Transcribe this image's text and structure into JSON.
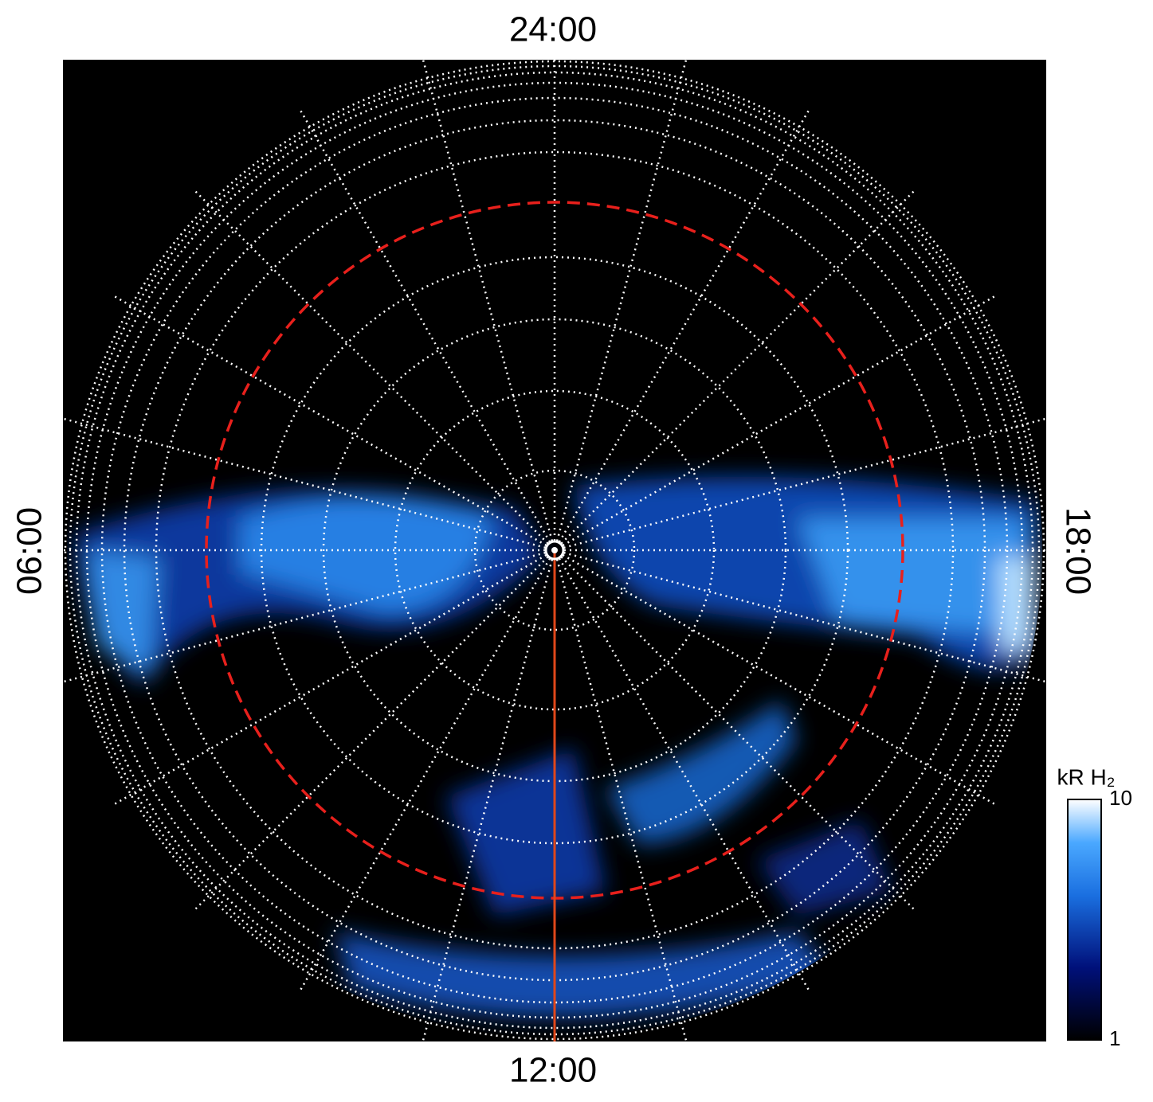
{
  "chart_data": {
    "type": "polar-image",
    "labels": {
      "top": "24:00",
      "bottom": "12:00",
      "left": "06:00",
      "right": "18:00"
    },
    "colorbar": {
      "title": "kR H₂",
      "ylim": [
        1,
        10
      ],
      "yticks": [
        1,
        10
      ],
      "log": true
    }
  }
}
